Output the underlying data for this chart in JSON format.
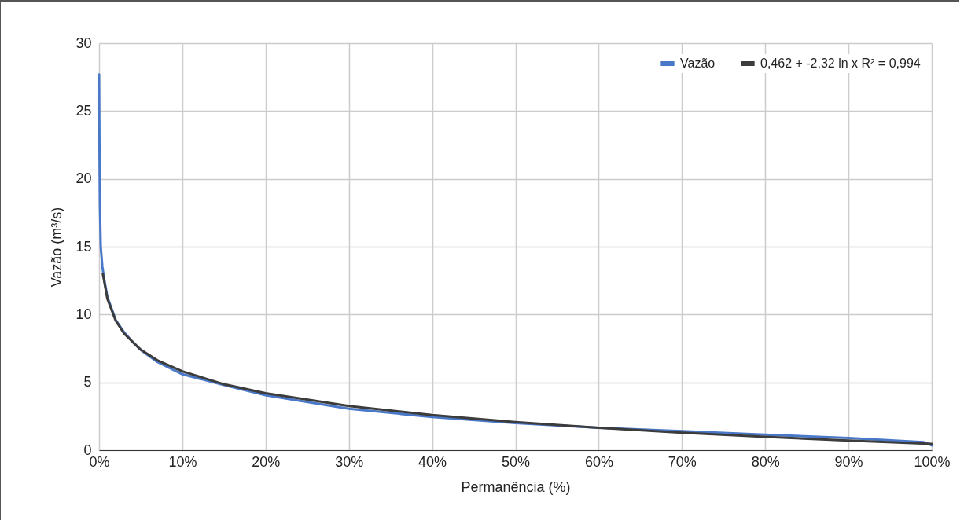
{
  "chart_data": {
    "type": "line",
    "xlabel": "Permanência (%)",
    "ylabel": "Vazão (m³/s)",
    "xlim": [
      0,
      100
    ],
    "xticks": [
      {
        "value": 0,
        "label": "0%"
      },
      {
        "value": 10,
        "label": "10%"
      },
      {
        "value": 20,
        "label": "20%"
      },
      {
        "value": 30,
        "label": "30%"
      },
      {
        "value": 40,
        "label": "40%"
      },
      {
        "value": 50,
        "label": "50%"
      },
      {
        "value": 60,
        "label": "60%"
      },
      {
        "value": 70,
        "label": "70%"
      },
      {
        "value": 80,
        "label": "80%"
      },
      {
        "value": 90,
        "label": "90%"
      },
      {
        "value": 100,
        "label": "100%"
      }
    ],
    "ylim": [
      0,
      30
    ],
    "yticks": [
      0,
      5,
      10,
      15,
      20,
      25,
      30
    ],
    "grid": true,
    "legend": "top right",
    "marker": "none",
    "line_style": "solid",
    "series": [
      {
        "name": "Vazão",
        "color": "#4a78c8",
        "x": [
          0,
          0.05,
          0.1,
          0.2,
          0.4,
          0.7,
          1,
          2,
          3,
          4,
          5,
          7,
          10,
          15,
          20,
          30,
          40,
          50,
          60,
          70,
          80,
          90,
          99,
          100
        ],
        "values": [
          27.7,
          22,
          18,
          15,
          13.5,
          12.3,
          11.3,
          9.6,
          8.7,
          8.0,
          7.4,
          6.5,
          5.6,
          4.8,
          4.05,
          3.05,
          2.45,
          2.0,
          1.65,
          1.4,
          1.15,
          0.9,
          0.6,
          0.35
        ]
      },
      {
        "name": "0,462 + -2,32 ln x R² = 0,994",
        "color": "#3c3c3c",
        "x": [
          0.45,
          1,
          2,
          3,
          5,
          7,
          10,
          15,
          20,
          30,
          40,
          50,
          60,
          70,
          80,
          90,
          100
        ],
        "values": [
          13.0,
          11.15,
          9.54,
          8.6,
          7.41,
          6.63,
          5.81,
          4.86,
          4.2,
          3.26,
          2.59,
          2.07,
          1.65,
          1.29,
          0.98,
          0.71,
          0.46
        ]
      }
    ]
  }
}
